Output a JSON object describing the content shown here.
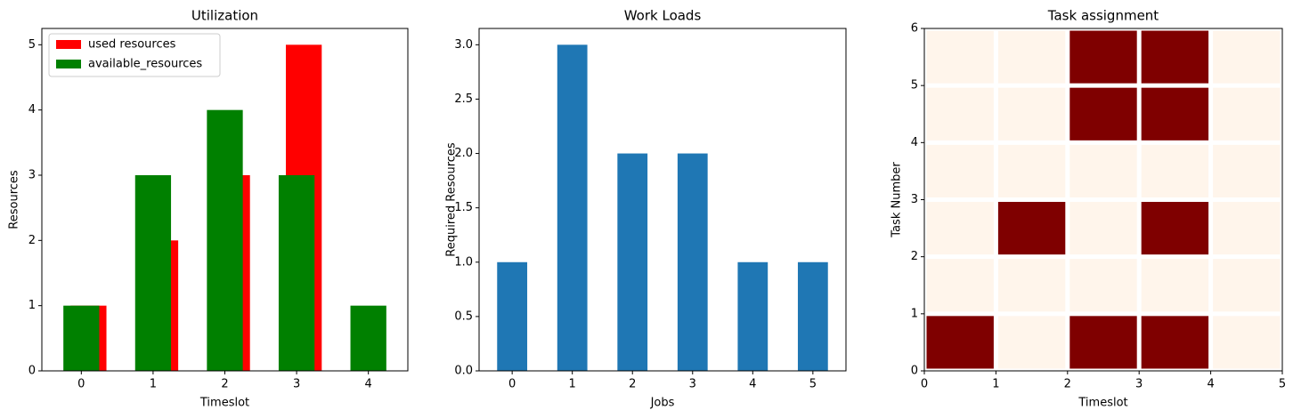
{
  "chart_data": [
    {
      "type": "bar",
      "title": "Utilization",
      "x_label": "Timeslot",
      "y_label": "Resources",
      "categories": [
        "0",
        "1",
        "2",
        "3",
        "4"
      ],
      "series": [
        {
          "name": "used resources",
          "color": "#ff0000",
          "values": [
            1,
            2,
            3,
            5,
            0
          ]
        },
        {
          "name": "available_resources",
          "color": "#008000",
          "values": [
            1,
            3,
            4,
            3,
            1
          ]
        }
      ],
      "ylim": [
        0,
        5.25
      ],
      "yticks": [
        0,
        1,
        2,
        3,
        4,
        5
      ],
      "legend": "upper left"
    },
    {
      "type": "bar",
      "title": "Work Loads",
      "x_label": "Jobs",
      "y_label": "Required Resources",
      "categories": [
        "0",
        "1",
        "2",
        "3",
        "4",
        "5"
      ],
      "color": "#1f77b4",
      "values": [
        1,
        3,
        2,
        2,
        1,
        1
      ],
      "ylim": [
        0,
        3.15
      ],
      "yticks": [
        {
          "value": 0,
          "label": "0.0"
        },
        0.5,
        {
          "value": 1,
          "label": "1.0"
        },
        1.5,
        {
          "value": 2,
          "label": "2.0"
        },
        2.5,
        {
          "value": 3,
          "label": "3.0"
        }
      ]
    },
    {
      "type": "heatmap",
      "title": "Task assignment",
      "x_label": "Timeslot",
      "y_label": "Task Number",
      "colors": [
        "#fff5eb",
        "#7f0000"
      ],
      "values": [
        [
          1,
          0,
          1,
          1,
          0
        ],
        [
          0,
          0,
          0,
          0,
          0
        ],
        [
          0,
          1,
          0,
          1,
          0
        ],
        [
          0,
          0,
          0,
          0,
          0
        ],
        [
          0,
          0,
          1,
          1,
          0
        ],
        [
          0,
          0,
          1,
          1,
          0
        ]
      ],
      "xlim": [
        0,
        5
      ],
      "ylim": [
        0,
        6
      ],
      "xticks": [
        0,
        1,
        2,
        3,
        4,
        5
      ],
      "yticks": [
        0,
        1,
        2,
        3,
        4,
        5,
        6
      ]
    }
  ]
}
